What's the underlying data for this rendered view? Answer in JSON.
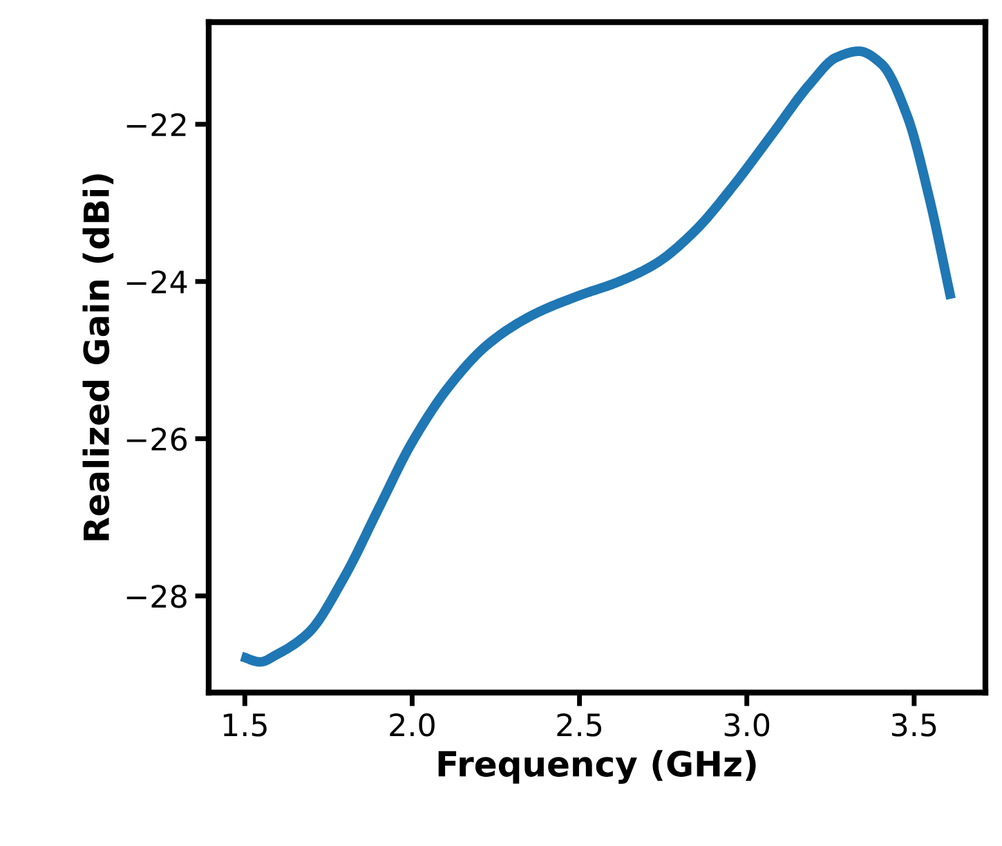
{
  "chart_data": {
    "type": "line",
    "xlabel": "Frequency (GHz)",
    "ylabel": "Realized Gain (dBi)",
    "x": [
      1.49,
      1.546,
      1.594,
      1.69,
      1.796,
      1.902,
      1.998,
      2.113,
      2.229,
      2.363,
      2.498,
      2.613,
      2.729,
      2.844,
      2.96,
      3.075,
      3.19,
      3.267,
      3.335,
      3.402,
      3.479,
      3.546,
      3.61
    ],
    "series": [
      {
        "color": "#1f77b4",
        "values": [
          -28.77,
          -28.84,
          -28.75,
          -28.47,
          -27.77,
          -26.87,
          -26.06,
          -25.32,
          -24.79,
          -24.42,
          -24.18,
          -24.01,
          -23.77,
          -23.36,
          -22.78,
          -22.13,
          -21.48,
          -21.15,
          -21.07,
          -21.23,
          -21.89,
          -22.95,
          -24.22
        ]
      }
    ],
    "xlim": [
      1.392,
      3.713
    ],
    "ylim": [
      -29.23,
      -20.7
    ],
    "xticks": [
      {
        "value": 1.5,
        "label": "1.5"
      },
      {
        "value": 2,
        "label": "2.0"
      },
      {
        "value": 2.5,
        "label": "2.5"
      },
      {
        "value": 3,
        "label": "3.0"
      },
      {
        "value": 3.5,
        "label": "3.5"
      }
    ],
    "yticks": [
      {
        "value": -22,
        "label": "−22"
      },
      {
        "value": -24,
        "label": "−24"
      },
      {
        "value": -26,
        "label": "−26"
      },
      {
        "value": -28,
        "label": "−28"
      }
    ],
    "grid": false,
    "legend": false,
    "marker": "none",
    "line_style": "solid"
  }
}
